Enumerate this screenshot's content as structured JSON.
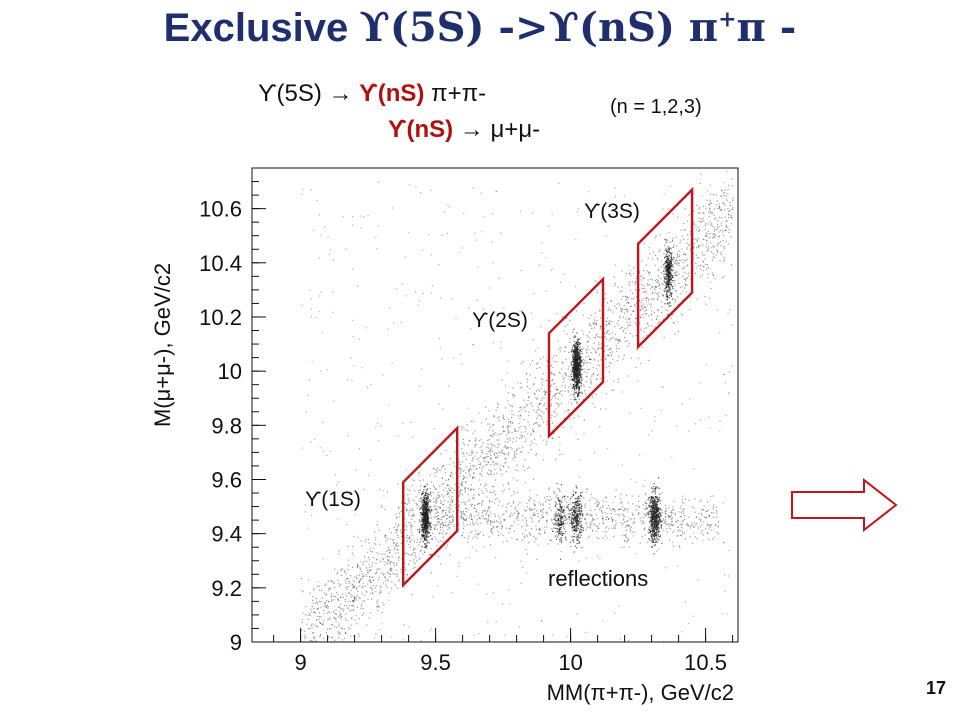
{
  "slide": {
    "title_main": "Exclusive ",
    "title_formula": "ϒ(5S) ->ϒ(nS) π",
    "title_sup": "+",
    "title_tail": "π -",
    "decay_line1_a": "ϒ(5S) → ",
    "decay_line1_b": "ϒ(nS)",
    "decay_line1_c": " π+π-",
    "decay_line2_a": "ϒ(nS)",
    "decay_line2_b": " → μ+μ-",
    "n_values": "(n = 1,2,3)",
    "page_number": "17"
  },
  "colors": {
    "title": "#1f2f6e",
    "highlight": "#b01010",
    "box": "#c0161b",
    "points": "#222222"
  },
  "icons": {
    "next": "right-arrow-outline-icon"
  },
  "chart_data": {
    "type": "scatter",
    "xlabel": "MM(π+π-), GeV/c2",
    "ylabel": "M(μ+μ-), GeV/c2",
    "xlim": [
      8.82,
      10.62
    ],
    "ylim": [
      9.0,
      10.75
    ],
    "x_ticks": [
      "9",
      "9.5",
      "10",
      "10.5"
    ],
    "x_tick_values": [
      9.0,
      9.5,
      10.0,
      10.5
    ],
    "y_ticks": [
      "9",
      "9.2",
      "9.4",
      "9.6",
      "9.8",
      "10",
      "10.2",
      "10.4",
      "10.6"
    ],
    "y_tick_values": [
      9.0,
      9.2,
      9.4,
      9.6,
      9.8,
      10.0,
      10.2,
      10.4,
      10.6
    ],
    "signal_clusters": [
      {
        "label": "ϒ(1S)",
        "x": 9.46,
        "y": 9.46
      },
      {
        "label": "ϒ(2S)",
        "x": 10.02,
        "y": 10.02
      },
      {
        "label": "ϒ(3S)",
        "x": 10.36,
        "y": 10.36
      }
    ],
    "reflection_clusters": [
      {
        "x": 9.96,
        "y": 9.46
      },
      {
        "x": 10.02,
        "y": 9.46
      },
      {
        "x": 10.31,
        "y": 9.46
      }
    ],
    "selection_boxes": [
      {
        "label": "ϒ(1S)",
        "x_range": [
          9.38,
          9.58
        ],
        "y_at_left": [
          9.21,
          9.59
        ],
        "y_at_right": [
          9.41,
          9.79
        ]
      },
      {
        "label": "ϒ(2S)",
        "x_range": [
          9.92,
          10.12
        ],
        "y_at_left": [
          9.76,
          10.14
        ],
        "y_at_right": [
          9.96,
          10.34
        ]
      },
      {
        "label": "ϒ(3S)",
        "x_range": [
          10.25,
          10.45
        ],
        "y_at_left": [
          10.09,
          10.47
        ],
        "y_at_right": [
          10.29,
          10.67
        ]
      }
    ],
    "annotations": [
      "reflections"
    ]
  }
}
